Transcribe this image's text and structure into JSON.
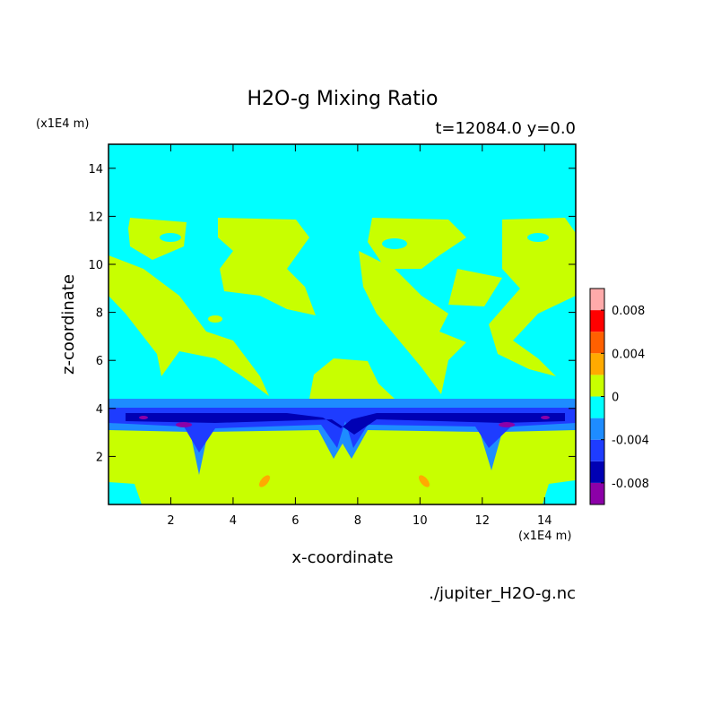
{
  "chart_data": {
    "type": "contour",
    "title": "H2O-g Mixing Ratio",
    "subtitle": "t=12084.0 y=0.0",
    "x_label": "x-coordinate",
    "y_label": "z-coordinate",
    "x_unit": "(x1E4 m)",
    "y_unit": "(x1E4 m)",
    "source": "./jupiter_H2O-g.nc",
    "xlim": [
      0,
      15
    ],
    "ylim": [
      0,
      15
    ],
    "xticks": [
      2,
      4,
      6,
      8,
      10,
      12,
      14
    ],
    "yticks": [
      2,
      4,
      6,
      8,
      10,
      12,
      14
    ],
    "levels": [
      -0.01,
      -0.008,
      -0.006,
      -0.004,
      -0.002,
      0,
      0.002,
      0.004,
      0.006,
      0.008,
      0.01
    ],
    "colors": [
      "#8c00a8",
      "#0000b4",
      "#1e3cff",
      "#1e8cff",
      "#00ffff",
      "#c8ff00",
      "#ffaa00",
      "#ff6000",
      "#ff0000",
      "#ffaaaa"
    ],
    "colorbar_ticks": [
      -0.008,
      -0.004,
      0,
      0.004,
      0.008
    ]
  }
}
